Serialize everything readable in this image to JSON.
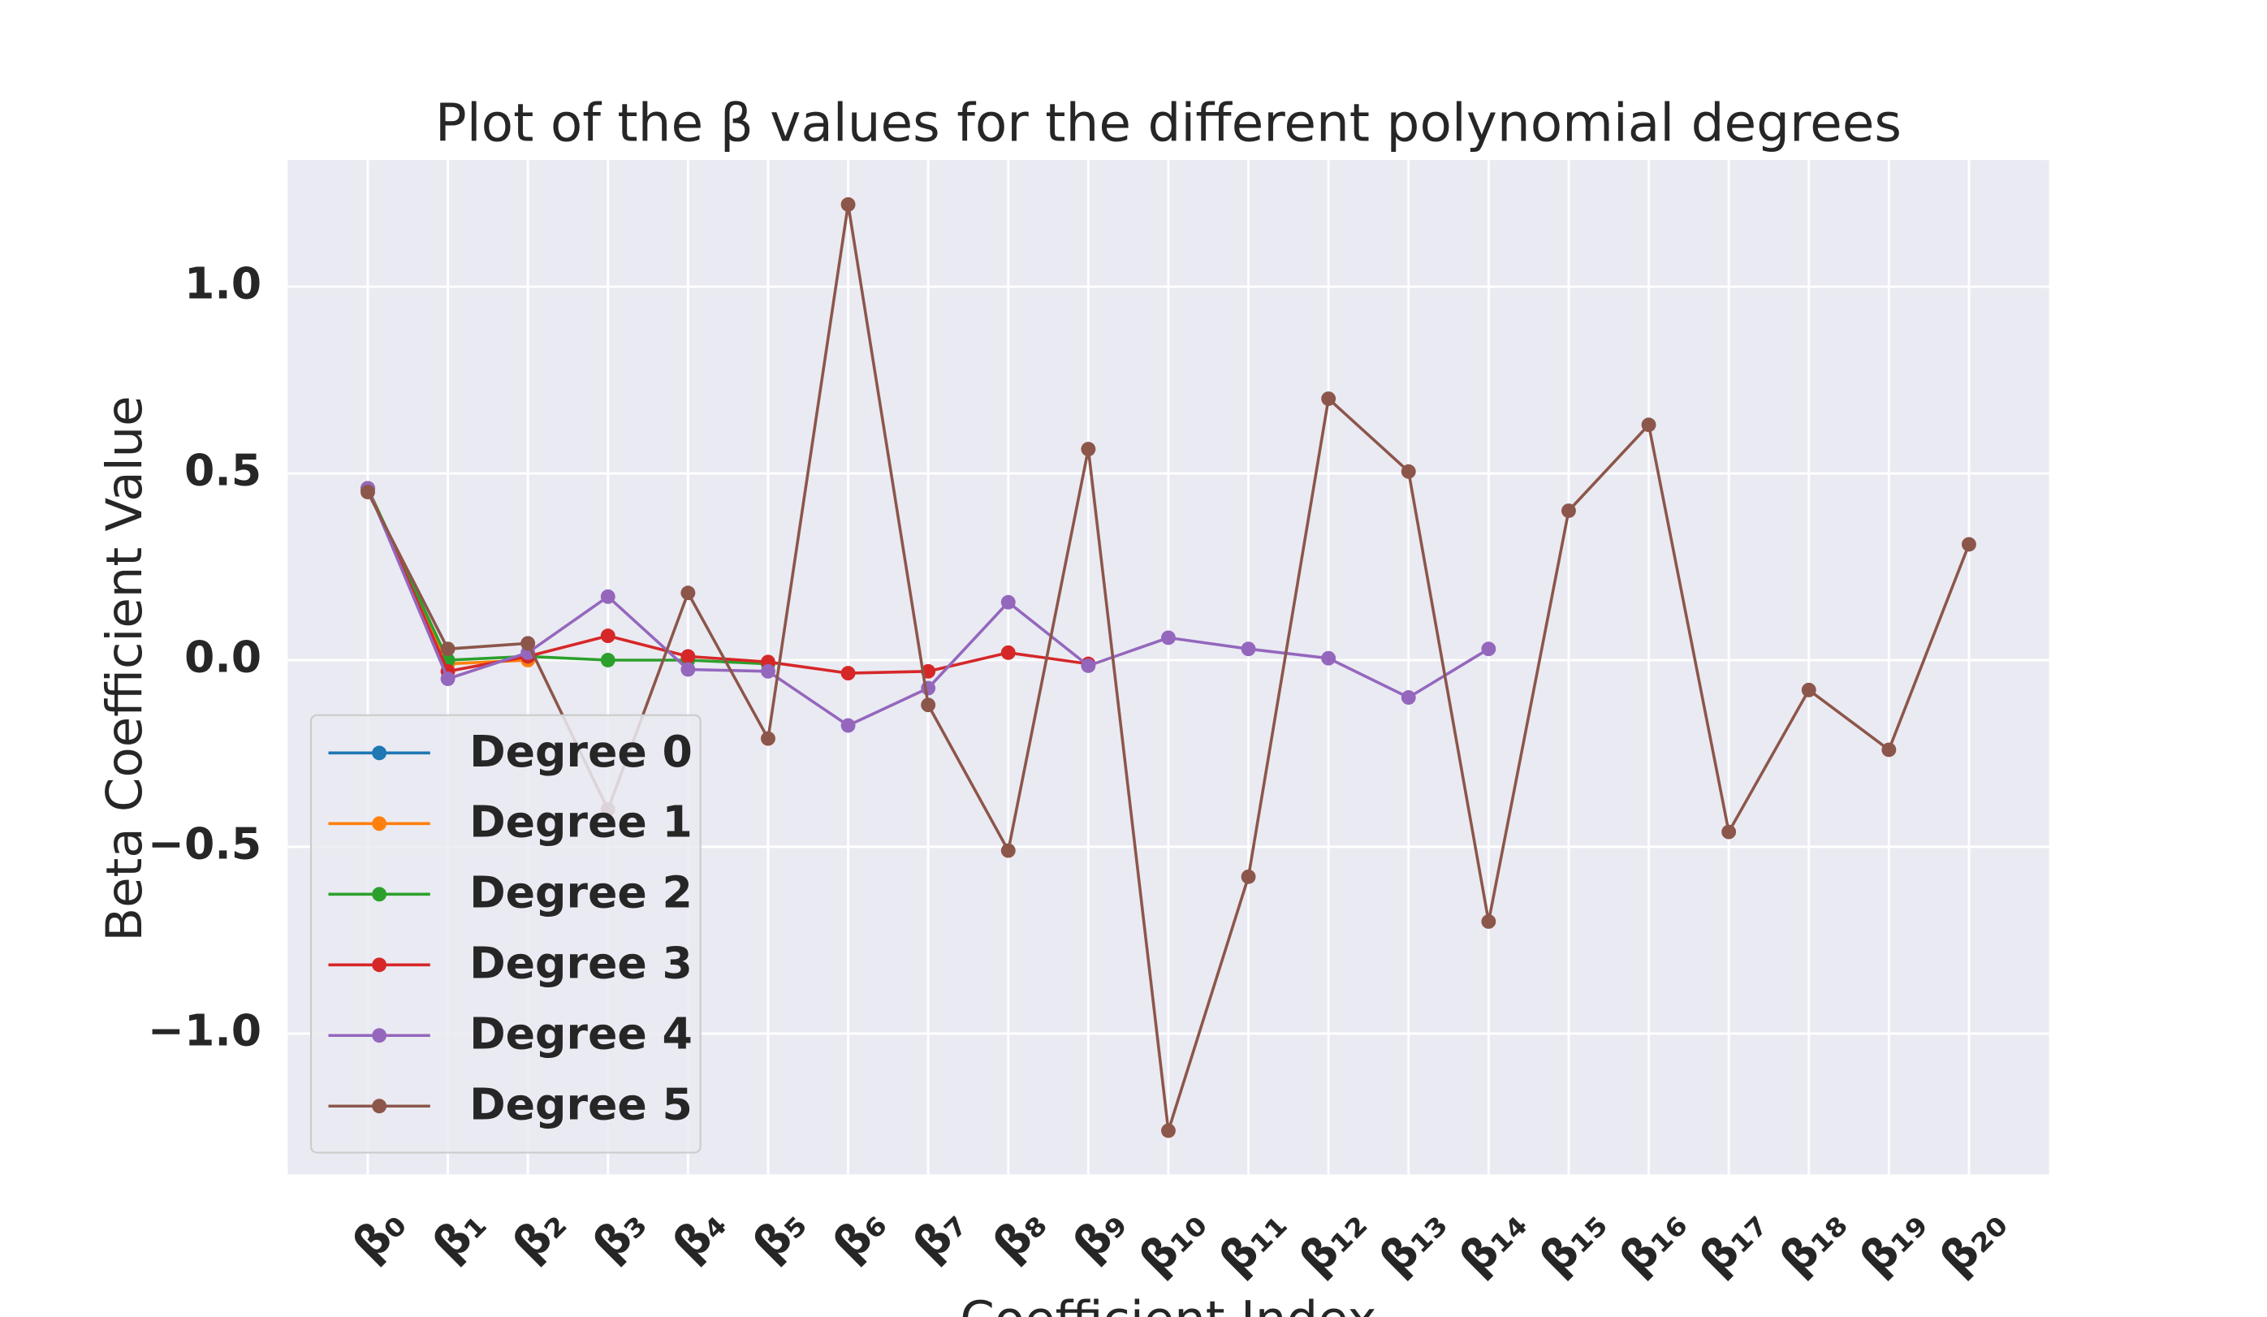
{
  "chart_data": {
    "type": "line",
    "title": "Plot of the β values for the different polynomial degrees",
    "x_label": "Coefficient Index",
    "y_label": "Beta Coefficient Value",
    "categories": [
      "β₀",
      "β₁",
      "β₂",
      "β₃",
      "β₄",
      "β₅",
      "β₆",
      "β₇",
      "β₈",
      "β₉",
      "β₁₀",
      "β₁₁",
      "β₁₂",
      "β₁₃",
      "β₁₄",
      "β₁₅",
      "β₁₆",
      "β₁₇",
      "β₁₈",
      "β₁₉",
      "β₂₀"
    ],
    "xlim": [
      -1,
      21
    ],
    "ylim": [
      -1.377,
      1.339
    ],
    "yticks": [
      {
        "value": -1,
        "label": "−1.0"
      },
      {
        "value": -0.5,
        "label": "−0.5"
      },
      {
        "value": 0,
        "label": "0.0"
      },
      {
        "value": 0.5,
        "label": "0.5"
      },
      {
        "value": 1,
        "label": "1.0"
      }
    ],
    "grid": true,
    "legend": "lower left",
    "series": [
      {
        "name": "Degree 0",
        "color": "#1f77b4",
        "values": [
          0.46,
          null,
          null,
          null,
          null,
          null,
          null,
          null,
          null,
          null,
          null,
          null,
          null,
          null,
          null,
          null,
          null,
          null,
          null,
          null,
          null
        ]
      },
      {
        "name": "Degree 1",
        "color": "#ff7f0e",
        "values": [
          0.46,
          -0.01,
          0.0,
          null,
          null,
          null,
          null,
          null,
          null,
          null,
          null,
          null,
          null,
          null,
          null,
          null,
          null,
          null,
          null,
          null,
          null
        ]
      },
      {
        "name": "Degree 2",
        "color": "#2ca02c",
        "values": [
          0.46,
          0.0,
          0.01,
          0.0,
          0.0,
          -0.01,
          null,
          null,
          null,
          null,
          null,
          null,
          null,
          null,
          null,
          null,
          null,
          null,
          null,
          null,
          null
        ]
      },
      {
        "name": "Degree 3",
        "color": "#d62728",
        "values": [
          0.46,
          -0.03,
          0.01,
          0.065,
          0.01,
          -0.005,
          -0.035,
          -0.03,
          0.02,
          -0.01,
          null,
          null,
          null,
          null,
          null,
          null,
          null,
          null,
          null,
          null,
          null
        ]
      },
      {
        "name": "Degree 4",
        "color": "#9467bd",
        "values": [
          0.46,
          -0.05,
          0.02,
          0.17,
          -0.025,
          -0.03,
          -0.175,
          -0.075,
          0.155,
          -0.015,
          0.06,
          0.03,
          0.005,
          -0.1,
          0.03,
          null,
          null,
          null,
          null,
          null,
          null
        ]
      },
      {
        "name": "Degree 5",
        "color": "#8c564b",
        "values": [
          0.45,
          0.03,
          0.045,
          -0.4,
          0.18,
          -0.21,
          1.22,
          -0.12,
          -0.51,
          0.565,
          -1.26,
          -0.58,
          0.7,
          0.505,
          -0.7,
          0.4,
          0.63,
          -0.46,
          -0.08,
          -0.24,
          0.31
        ]
      }
    ]
  }
}
